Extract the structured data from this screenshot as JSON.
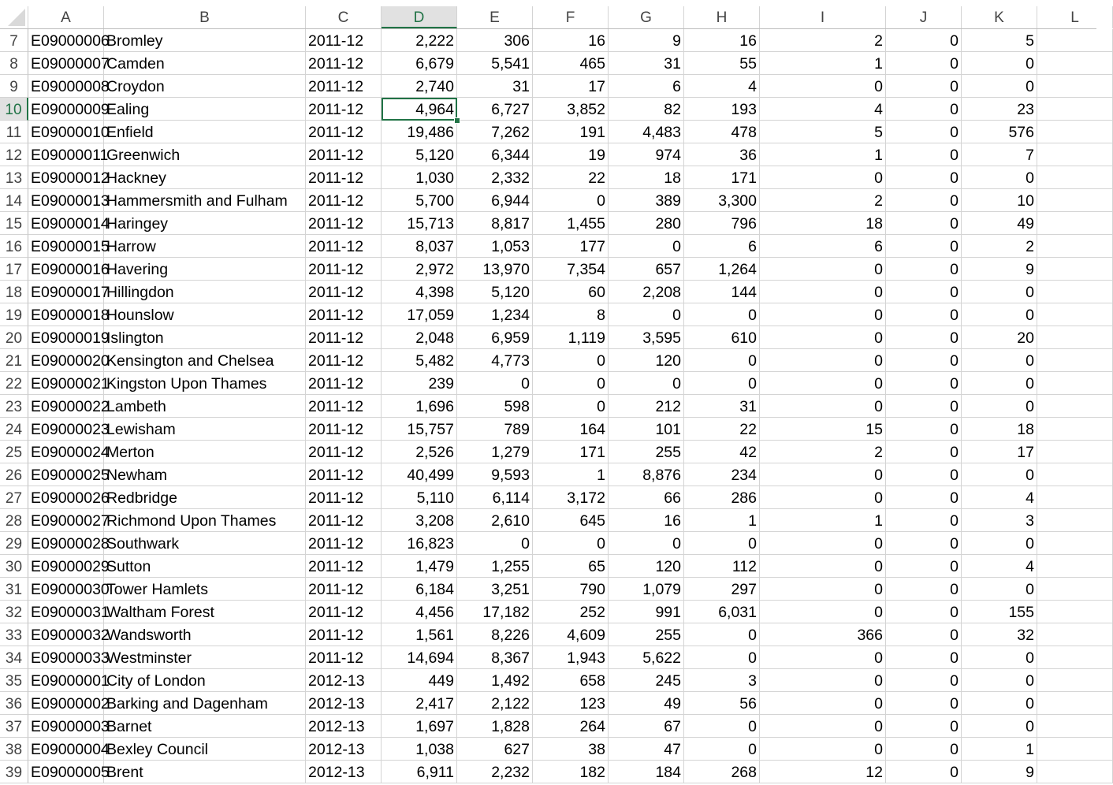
{
  "columns": [
    "A",
    "B",
    "C",
    "D",
    "E",
    "F",
    "G",
    "H",
    "I",
    "J",
    "K",
    "L"
  ],
  "selected_column": "D",
  "selected_row": "10",
  "rows": [
    {
      "n": "7",
      "a": "E09000006",
      "b": "Bromley",
      "c": "2011-12",
      "d": "2,222",
      "e": "306",
      "f": "16",
      "g": "9",
      "h": "16",
      "i": "2",
      "j": "0",
      "k": "5"
    },
    {
      "n": "8",
      "a": "E09000007",
      "b": "Camden",
      "c": "2011-12",
      "d": "6,679",
      "e": "5,541",
      "f": "465",
      "g": "31",
      "h": "55",
      "i": "1",
      "j": "0",
      "k": "0"
    },
    {
      "n": "9",
      "a": "E09000008",
      "b": "Croydon",
      "c": "2011-12",
      "d": "2,740",
      "e": "31",
      "f": "17",
      "g": "6",
      "h": "4",
      "i": "0",
      "j": "0",
      "k": "0"
    },
    {
      "n": "10",
      "a": "E09000009",
      "b": "Ealing",
      "c": "2011-12",
      "d": "4,964",
      "e": "6,727",
      "f": "3,852",
      "g": "82",
      "h": "193",
      "i": "4",
      "j": "0",
      "k": "23"
    },
    {
      "n": "11",
      "a": "E09000010",
      "b": "Enfield",
      "c": "2011-12",
      "d": "19,486",
      "e": "7,262",
      "f": "191",
      "g": "4,483",
      "h": "478",
      "i": "5",
      "j": "0",
      "k": "576"
    },
    {
      "n": "12",
      "a": "E09000011",
      "b": "Greenwich",
      "c": "2011-12",
      "d": "5,120",
      "e": "6,344",
      "f": "19",
      "g": "974",
      "h": "36",
      "i": "1",
      "j": "0",
      "k": "7"
    },
    {
      "n": "13",
      "a": "E09000012",
      "b": "Hackney",
      "c": "2011-12",
      "d": "1,030",
      "e": "2,332",
      "f": "22",
      "g": "18",
      "h": "171",
      "i": "0",
      "j": "0",
      "k": "0"
    },
    {
      "n": "14",
      "a": "E09000013",
      "b": "Hammersmith and Fulham",
      "c": "2011-12",
      "d": "5,700",
      "e": "6,944",
      "f": "0",
      "g": "389",
      "h": "3,300",
      "i": "2",
      "j": "0",
      "k": "10"
    },
    {
      "n": "15",
      "a": "E09000014",
      "b": "Haringey",
      "c": "2011-12",
      "d": "15,713",
      "e": "8,817",
      "f": "1,455",
      "g": "280",
      "h": "796",
      "i": "18",
      "j": "0",
      "k": "49"
    },
    {
      "n": "16",
      "a": "E09000015",
      "b": "Harrow",
      "c": "2011-12",
      "d": "8,037",
      "e": "1,053",
      "f": "177",
      "g": "0",
      "h": "6",
      "i": "6",
      "j": "0",
      "k": "2"
    },
    {
      "n": "17",
      "a": "E09000016",
      "b": "Havering",
      "c": "2011-12",
      "d": "2,972",
      "e": "13,970",
      "f": "7,354",
      "g": "657",
      "h": "1,264",
      "i": "0",
      "j": "0",
      "k": "9"
    },
    {
      "n": "18",
      "a": "E09000017",
      "b": "Hillingdon",
      "c": "2011-12",
      "d": "4,398",
      "e": "5,120",
      "f": "60",
      "g": "2,208",
      "h": "144",
      "i": "0",
      "j": "0",
      "k": "0"
    },
    {
      "n": "19",
      "a": "E09000018",
      "b": "Hounslow",
      "c": "2011-12",
      "d": "17,059",
      "e": "1,234",
      "f": "8",
      "g": "0",
      "h": "0",
      "i": "0",
      "j": "0",
      "k": "0"
    },
    {
      "n": "20",
      "a": "E09000019",
      "b": "Islington",
      "c": "2011-12",
      "d": "2,048",
      "e": "6,959",
      "f": "1,119",
      "g": "3,595",
      "h": "610",
      "i": "0",
      "j": "0",
      "k": "20"
    },
    {
      "n": "21",
      "a": "E09000020",
      "b": "Kensington and Chelsea",
      "c": "2011-12",
      "d": "5,482",
      "e": "4,773",
      "f": "0",
      "g": "120",
      "h": "0",
      "i": "0",
      "j": "0",
      "k": "0"
    },
    {
      "n": "22",
      "a": "E09000021",
      "b": "Kingston Upon Thames",
      "c": "2011-12",
      "d": "239",
      "e": "0",
      "f": "0",
      "g": "0",
      "h": "0",
      "i": "0",
      "j": "0",
      "k": "0"
    },
    {
      "n": "23",
      "a": "E09000022",
      "b": "Lambeth",
      "c": "2011-12",
      "d": "1,696",
      "e": "598",
      "f": "0",
      "g": "212",
      "h": "31",
      "i": "0",
      "j": "0",
      "k": "0"
    },
    {
      "n": "24",
      "a": "E09000023",
      "b": "Lewisham",
      "c": "2011-12",
      "d": "15,757",
      "e": "789",
      "f": "164",
      "g": "101",
      "h": "22",
      "i": "15",
      "j": "0",
      "k": "18"
    },
    {
      "n": "25",
      "a": "E09000024",
      "b": "Merton",
      "c": "2011-12",
      "d": "2,526",
      "e": "1,279",
      "f": "171",
      "g": "255",
      "h": "42",
      "i": "2",
      "j": "0",
      "k": "17"
    },
    {
      "n": "26",
      "a": "E09000025",
      "b": "Newham",
      "c": "2011-12",
      "d": "40,499",
      "e": "9,593",
      "f": "1",
      "g": "8,876",
      "h": "234",
      "i": "0",
      "j": "0",
      "k": "0"
    },
    {
      "n": "27",
      "a": "E09000026",
      "b": "Redbridge",
      "c": "2011-12",
      "d": "5,110",
      "e": "6,114",
      "f": "3,172",
      "g": "66",
      "h": "286",
      "i": "0",
      "j": "0",
      "k": "4"
    },
    {
      "n": "28",
      "a": "E09000027",
      "b": "Richmond Upon Thames",
      "c": "2011-12",
      "d": "3,208",
      "e": "2,610",
      "f": "645",
      "g": "16",
      "h": "1",
      "i": "1",
      "j": "0",
      "k": "3"
    },
    {
      "n": "29",
      "a": "E09000028",
      "b": "Southwark",
      "c": "2011-12",
      "d": "16,823",
      "e": "0",
      "f": "0",
      "g": "0",
      "h": "0",
      "i": "0",
      "j": "0",
      "k": "0"
    },
    {
      "n": "30",
      "a": "E09000029",
      "b": "Sutton",
      "c": "2011-12",
      "d": "1,479",
      "e": "1,255",
      "f": "65",
      "g": "120",
      "h": "112",
      "i": "0",
      "j": "0",
      "k": "4"
    },
    {
      "n": "31",
      "a": "E09000030",
      "b": "Tower Hamlets",
      "c": "2011-12",
      "d": "6,184",
      "e": "3,251",
      "f": "790",
      "g": "1,079",
      "h": "297",
      "i": "0",
      "j": "0",
      "k": "0"
    },
    {
      "n": "32",
      "a": "E09000031",
      "b": "Waltham Forest",
      "c": "2011-12",
      "d": "4,456",
      "e": "17,182",
      "f": "252",
      "g": "991",
      "h": "6,031",
      "i": "0",
      "j": "0",
      "k": "155"
    },
    {
      "n": "33",
      "a": "E09000032",
      "b": "Wandsworth",
      "c": "2011-12",
      "d": "1,561",
      "e": "8,226",
      "f": "4,609",
      "g": "255",
      "h": "0",
      "i": "366",
      "j": "0",
      "k": "32"
    },
    {
      "n": "34",
      "a": "E09000033",
      "b": "Westminster",
      "c": "2011-12",
      "d": "14,694",
      "e": "8,367",
      "f": "1,943",
      "g": "5,622",
      "h": "0",
      "i": "0",
      "j": "0",
      "k": "0"
    },
    {
      "n": "35",
      "a": "E09000001",
      "b": "City of London",
      "c": "2012-13",
      "d": "449",
      "e": "1,492",
      "f": "658",
      "g": "245",
      "h": "3",
      "i": "0",
      "j": "0",
      "k": "0"
    },
    {
      "n": "36",
      "a": "E09000002",
      "b": "Barking and Dagenham",
      "c": "2012-13",
      "d": "2,417",
      "e": "2,122",
      "f": "123",
      "g": "49",
      "h": "56",
      "i": "0",
      "j": "0",
      "k": "0"
    },
    {
      "n": "37",
      "a": "E09000003",
      "b": "Barnet",
      "c": "2012-13",
      "d": "1,697",
      "e": "1,828",
      "f": "264",
      "g": "67",
      "h": "0",
      "i": "0",
      "j": "0",
      "k": "0"
    },
    {
      "n": "38",
      "a": "E09000004",
      "b": "Bexley Council",
      "c": "2012-13",
      "d": "1,038",
      "e": "627",
      "f": "38",
      "g": "47",
      "h": "0",
      "i": "0",
      "j": "0",
      "k": "1"
    },
    {
      "n": "39",
      "a": "E09000005",
      "b": "Brent",
      "c": "2012-13",
      "d": "6,911",
      "e": "2,232",
      "f": "182",
      "g": "184",
      "h": "268",
      "i": "12",
      "j": "0",
      "k": "9"
    }
  ]
}
